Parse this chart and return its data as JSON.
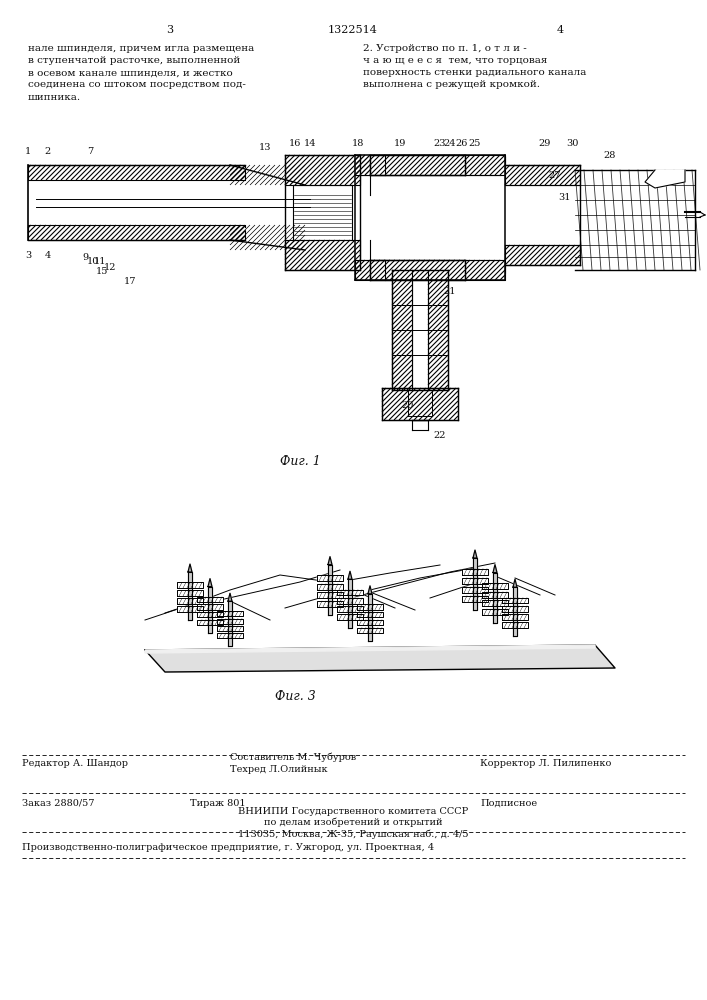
{
  "bg_color": "#ffffff",
  "page_number_left": "3",
  "patent_number": "1322514",
  "page_number_right": "4",
  "col_left_text": "нале шпинделя, причем игла размещена\nв ступенчатой расточке, выполненной\nв осевом канале шпинделя, и жестко\nсоединена со штоком посредством под-\nшипника.",
  "col_right_text": "2. Устройство по п. 1, о т л и -\nч а ю щ е е с я  тем, что торцовая\nповерхность стенки радиального канала\nвыполнена с режущей кромкой.",
  "fig1_caption": "Фиг. 1",
  "fig3_caption": "Фиг. 3",
  "footer_editor": "Редактор А. Шандор",
  "footer_composer": "Составитель М. Чубуров",
  "footer_techred": "Техред Л.Олийнык",
  "footer_corrector": "Корректор Л. Пилипенко",
  "footer_order": "Заказ 2880/57",
  "footer_tirazh": "Тираж 801",
  "footer_podpisnoe": "Подписное",
  "footer_vniipи": "ВНИИПИ Государственного комитета СССР",
  "footer_po_delam": "по делам изобретений и открытий",
  "footer_address": "113035, Москва, Ж-35, Раушская наб., д. 4/5",
  "footer_production": "Производственно-полиграфическое предприятие, г. Ужгород, ул. Проектная, 4"
}
